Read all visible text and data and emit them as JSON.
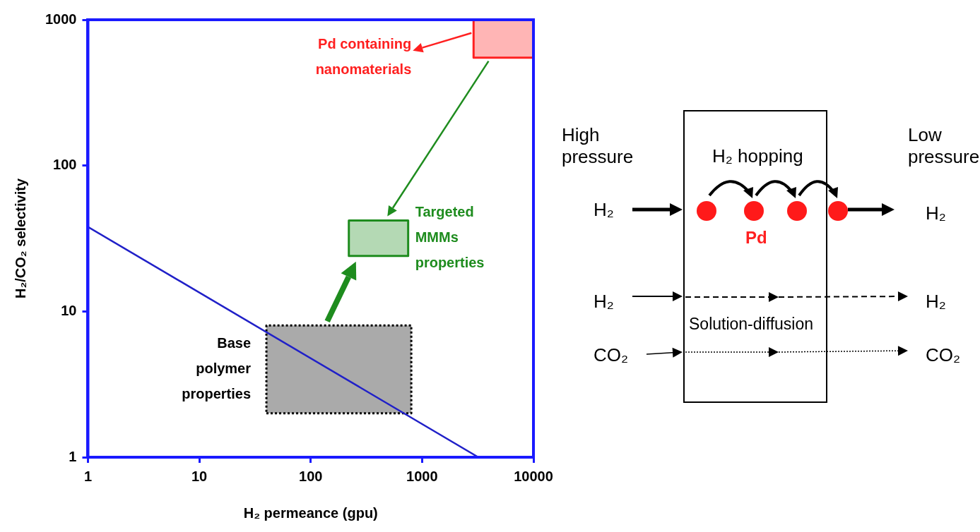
{
  "chart_data": [
    {
      "type": "line",
      "xlabel": "H₂ permeance (gpu)",
      "ylabel": "H₂/CO₂ selectivity",
      "log": "xy",
      "xlim": [
        1,
        10000
      ],
      "ylim": [
        1,
        1000
      ],
      "xticks": [
        1,
        10,
        100,
        1000,
        10000
      ],
      "yticks": [
        1,
        10,
        100,
        1000
      ],
      "grid": false,
      "marker": "none",
      "series": [
        {
          "color": "#2020c8",
          "x": [
            1,
            3200
          ],
          "values": [
            38,
            1
          ]
        },
        {
          "type": "area",
          "name": "Base polymer properties",
          "color": "#000000",
          "line_style": "dotted",
          "x": [
            40,
            800,
            800,
            40,
            40
          ],
          "values": [
            2,
            2,
            8,
            8,
            2
          ]
        },
        {
          "type": "area",
          "name": "Targeted MMMs properties",
          "color": "#1e8c1e",
          "x": [
            220,
            750,
            750,
            220,
            220
          ],
          "values": [
            24,
            24,
            42,
            42,
            24
          ]
        },
        {
          "type": "area",
          "name": "Pd containing nanomaterials",
          "color": "#ff2020",
          "x": [
            2900,
            10000,
            10000,
            2900,
            2900
          ],
          "values": [
            550,
            550,
            1000,
            1000,
            550
          ]
        }
      ]
    },
    {
      "type": "other",
      "annotations": [
        "High pressure",
        "Low pressure",
        "H₂ hopping",
        "H₂",
        "H₂",
        "Pd",
        "H₂",
        "H₂",
        "Solution-diffusion",
        "CO₂",
        "CO₂"
      ]
    }
  ]
}
